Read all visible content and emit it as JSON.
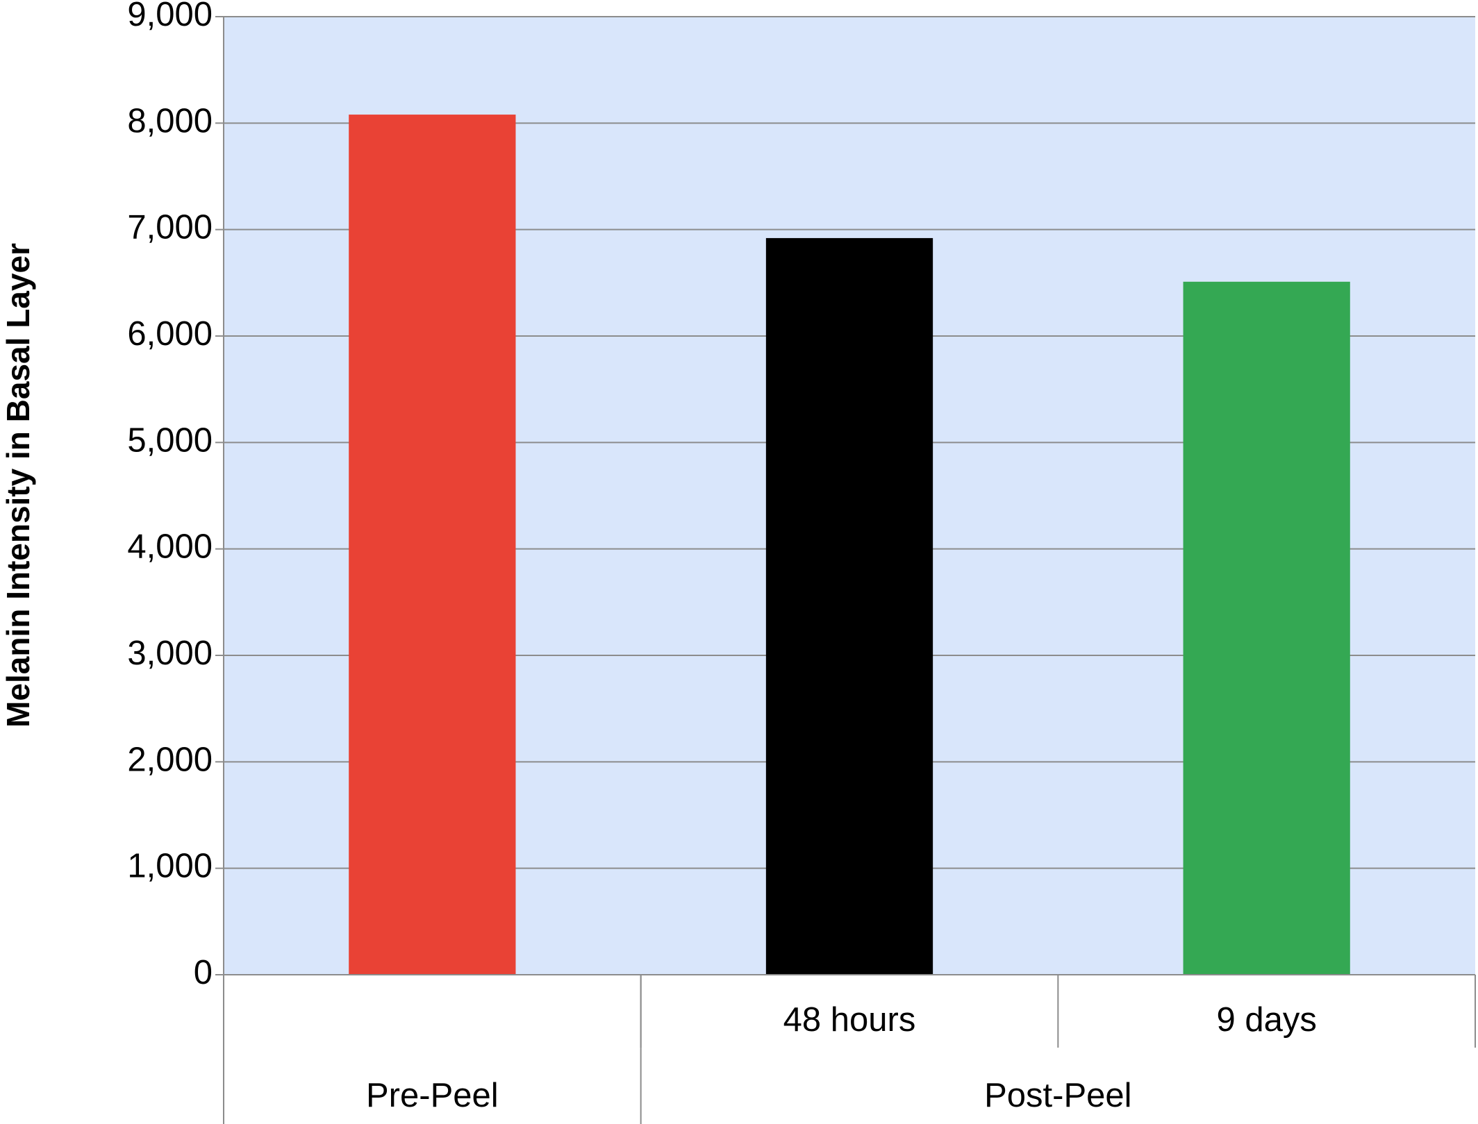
{
  "chart_data": {
    "type": "bar",
    "y_axis_label": "Melanin Intensity in Basal Layer",
    "categories": [
      null,
      "48 hours",
      "9 days"
    ],
    "groups": [
      {
        "name": "Pre-Peel",
        "size": 1
      },
      {
        "name": "Post-Peel",
        "size": 2
      }
    ],
    "values": [
      8080,
      6920,
      6510
    ],
    "colors": [
      "#e94235",
      "#000000",
      "#34a853"
    ],
    "ylim": [
      0,
      9000
    ],
    "yticks": [
      0,
      {
        "value": 1000,
        "label": "1,000"
      },
      {
        "value": 2000,
        "label": "2,000"
      },
      {
        "value": 3000,
        "label": "3,000"
      },
      {
        "value": 4000,
        "label": "4,000"
      },
      {
        "value": 5000,
        "label": "5,000"
      },
      {
        "value": 6000,
        "label": "6,000"
      },
      {
        "value": 7000,
        "label": "7,000"
      },
      {
        "value": 8000,
        "label": "8,000"
      },
      {
        "value": 9000,
        "label": "9,000"
      }
    ],
    "grid": true,
    "plot_background": "#d9e6fb"
  }
}
